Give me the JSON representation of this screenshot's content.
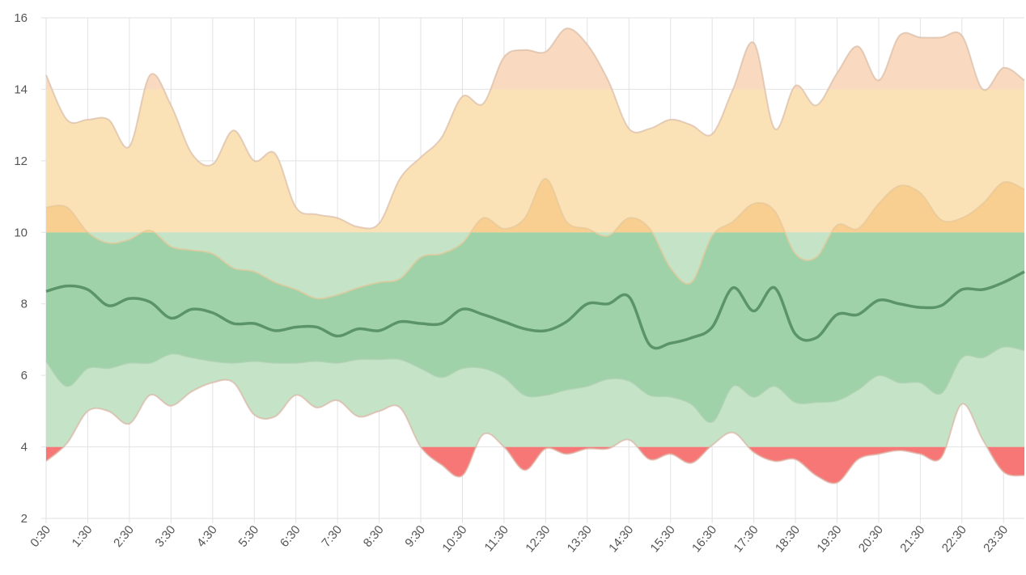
{
  "chart_data": {
    "type": "band",
    "categories": [
      "0:30",
      null,
      "1:30",
      null,
      "2:30",
      null,
      "3:30",
      null,
      "4:30",
      null,
      "5:30",
      null,
      "6:30",
      null,
      "7:30",
      null,
      "8:30",
      null,
      "9:30",
      null,
      "10:30",
      null,
      "11:30",
      null,
      "12:30",
      null,
      "13:30",
      null,
      "14:30",
      null,
      "15:30",
      null,
      "16:30",
      null,
      "17:30",
      null,
      "18:30",
      null,
      "19:30",
      null,
      "20:30",
      null,
      "21:30",
      null,
      "22:30",
      null,
      "23:30",
      null
    ],
    "series": [
      {
        "color": "#d9bca6",
        "values": [
          14.4,
          13.15,
          13.15,
          13.15,
          12.4,
          14.4,
          13.55,
          12.2,
          11.9,
          12.85,
          12.0,
          12.2,
          10.7,
          10.5,
          10.4,
          10.15,
          10.25,
          11.5,
          12.1,
          12.65,
          13.8,
          13.6,
          14.9,
          15.1,
          15.05,
          15.7,
          15.25,
          14.25,
          12.9,
          12.9,
          13.15,
          13.0,
          12.75,
          14.0,
          15.3,
          12.9,
          14.1,
          13.55,
          14.45,
          15.2,
          14.25,
          15.5,
          15.45,
          15.45,
          15.5,
          14.0,
          14.6,
          14.25
        ]
      },
      {
        "color": "#e6c79a",
        "values": [
          10.7,
          10.7,
          10.0,
          9.7,
          9.8,
          10.05,
          9.6,
          9.5,
          9.4,
          9.0,
          8.9,
          8.6,
          8.4,
          8.15,
          8.25,
          8.45,
          8.6,
          8.7,
          9.3,
          9.4,
          9.7,
          10.4,
          10.1,
          10.4,
          11.5,
          10.3,
          10.1,
          9.9,
          10.4,
          10.1,
          9.0,
          8.6,
          9.9,
          10.3,
          10.8,
          10.6,
          9.4,
          9.3,
          10.2,
          10.1,
          10.8,
          11.3,
          11.1,
          10.35,
          10.4,
          10.8,
          11.4,
          11.2
        ]
      },
      {
        "color": "#5b9468",
        "values": [
          8.35,
          8.5,
          8.4,
          7.95,
          8.15,
          8.05,
          7.6,
          7.85,
          7.75,
          7.45,
          7.45,
          7.25,
          7.35,
          7.35,
          7.1,
          7.3,
          7.25,
          7.5,
          7.45,
          7.45,
          7.85,
          7.7,
          7.5,
          7.3,
          7.25,
          7.5,
          8.0,
          8.0,
          8.2,
          6.85,
          6.9,
          7.05,
          7.35,
          8.45,
          7.8,
          8.45,
          7.15,
          7.05,
          7.7,
          7.7,
          8.1,
          8.0,
          7.9,
          7.95,
          8.4,
          8.4,
          8.6,
          8.9
        ]
      },
      {
        "color": "#a9cfae",
        "values": [
          6.4,
          5.7,
          6.2,
          6.2,
          6.35,
          6.35,
          6.6,
          6.5,
          6.4,
          6.35,
          6.4,
          6.35,
          6.35,
          6.4,
          6.35,
          6.45,
          6.45,
          6.45,
          6.2,
          5.95,
          6.2,
          6.2,
          5.95,
          5.45,
          5.45,
          5.6,
          5.7,
          5.9,
          5.85,
          5.45,
          5.4,
          5.2,
          4.7,
          5.7,
          5.4,
          5.7,
          5.25,
          5.25,
          5.3,
          5.6,
          6.0,
          5.8,
          5.8,
          5.5,
          6.5,
          6.5,
          6.8,
          6.7
        ]
      },
      {
        "color": "#dcb4a4",
        "values": [
          3.6,
          4.1,
          5.0,
          5.0,
          4.65,
          5.45,
          5.15,
          5.55,
          5.8,
          5.8,
          4.9,
          4.85,
          5.45,
          5.1,
          5.3,
          4.85,
          5.0,
          5.1,
          4.0,
          3.5,
          3.2,
          4.35,
          4.0,
          3.35,
          3.95,
          3.8,
          3.95,
          3.95,
          4.2,
          3.65,
          3.8,
          3.55,
          4.05,
          4.4,
          3.85,
          3.6,
          3.65,
          3.2,
          3.0,
          3.65,
          3.8,
          3.9,
          3.8,
          3.7,
          5.2,
          4.2,
          3.3,
          3.2
        ]
      }
    ],
    "thresholds": [
      4,
      10,
      14
    ],
    "zone_colors": [
      [
        "#f77676",
        "#f77676"
      ],
      [
        "#c4e3c7",
        "#9fd2a8"
      ],
      [
        "#fbe2b6",
        "#f8cf90"
      ],
      [
        "#f9d9bf",
        "#f6c89c"
      ]
    ],
    "ylim": [
      2,
      16
    ],
    "yticks": [
      2,
      4,
      6,
      8,
      10,
      12,
      14,
      16
    ],
    "grid": true
  }
}
